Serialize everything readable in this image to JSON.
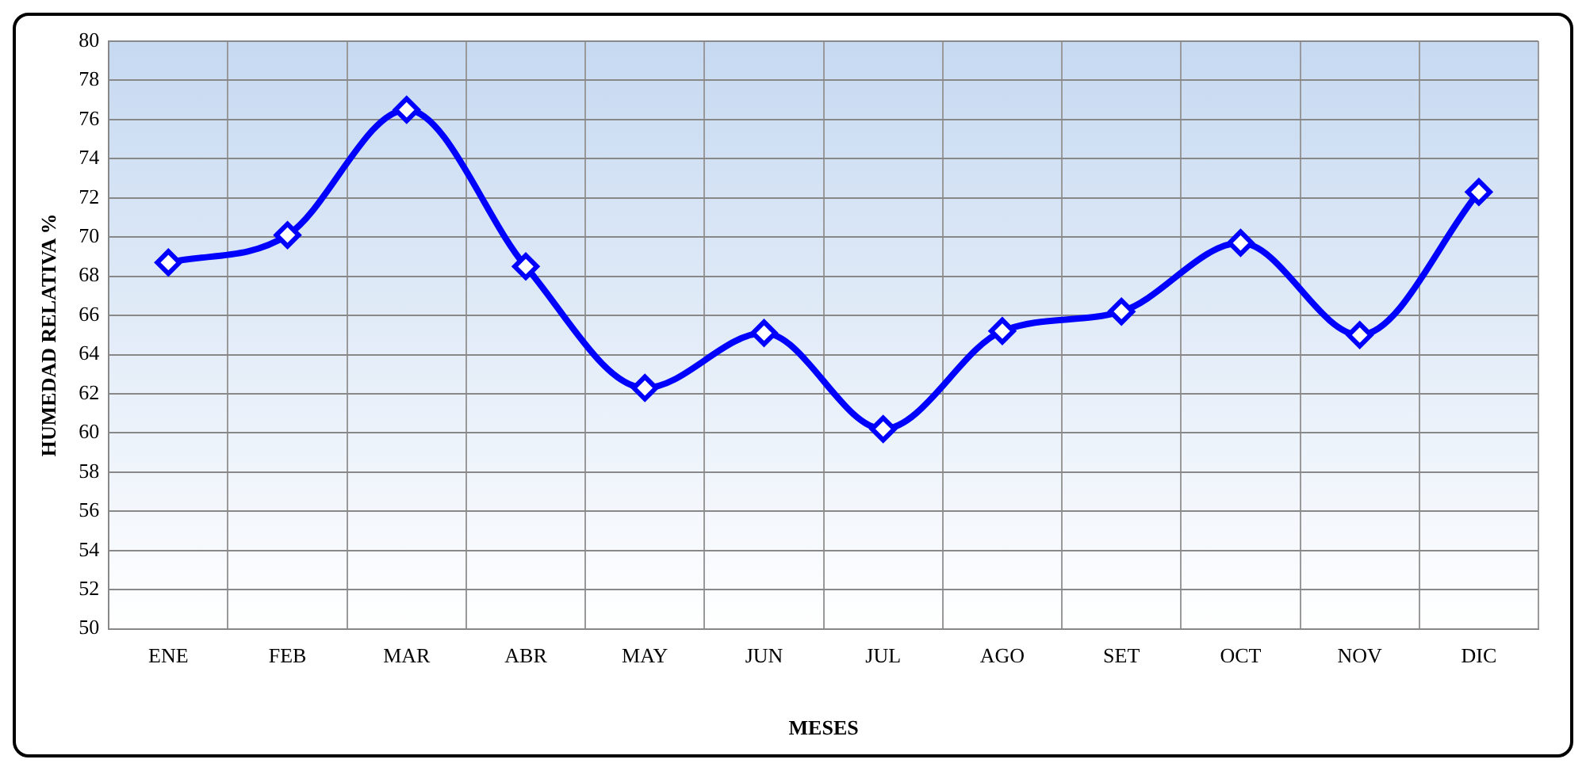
{
  "chart_data": {
    "type": "line",
    "xlabel": "MESES",
    "ylabel": "HUMEDAD RELATIVA %",
    "categories": [
      "ENE",
      "FEB",
      "MAR",
      "ABR",
      "MAY",
      "JUN",
      "JUL",
      "AGO",
      "SET",
      "OCT",
      "NOV",
      "DIC"
    ],
    "series": [
      {
        "color": "#0000ff",
        "values": [
          68.7,
          70.1,
          76.5,
          68.5,
          62.3,
          65.1,
          60.2,
          65.2,
          66.2,
          69.7,
          65.0,
          72.3
        ]
      }
    ],
    "ylim": [
      50,
      80
    ],
    "yticks": [
      50,
      52,
      54,
      56,
      58,
      60,
      62,
      64,
      66,
      68,
      70,
      72,
      74,
      76,
      78,
      80
    ],
    "grid": true,
    "legend": false,
    "marker": "diamond",
    "line_style": "solid"
  }
}
